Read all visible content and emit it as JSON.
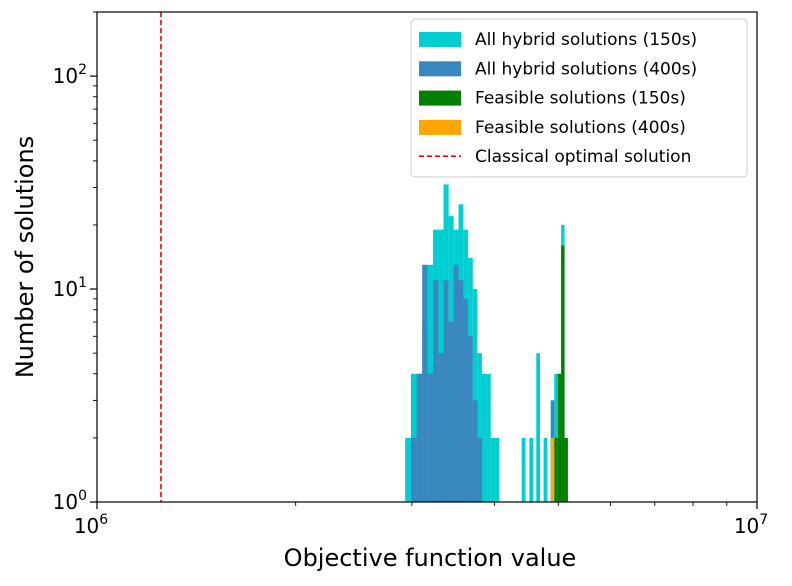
{
  "chart_data": {
    "type": "histogram",
    "title": "",
    "xlabel": "Objective function value",
    "ylabel": "Number of solutions",
    "xscale": "log",
    "yscale": "log",
    "xlim": [
      1000000,
      10000000
    ],
    "ylim": [
      1,
      200
    ],
    "x_tick_labels": [
      {
        "value": 1000000,
        "base": "10",
        "exp": "6"
      },
      {
        "value": 10000000,
        "base": "10",
        "exp": "7"
      }
    ],
    "y_tick_labels": [
      {
        "value": 1,
        "base": "10",
        "exp": "0"
      },
      {
        "value": 10,
        "base": "10",
        "exp": "1"
      },
      {
        "value": 100,
        "base": "10",
        "exp": "2"
      }
    ],
    "legend_position": "top-right",
    "series": [
      {
        "name": "All hybrid solutions (150s)",
        "color": "#00CED1",
        "bins": [
          [
            2930000,
            2990000,
            2
          ],
          [
            2990000,
            3050000,
            4
          ],
          [
            3050000,
            3110000,
            4
          ],
          [
            3110000,
            3170000,
            7
          ],
          [
            3170000,
            3230000,
            13
          ],
          [
            3230000,
            3290000,
            19
          ],
          [
            3290000,
            3350000,
            19
          ],
          [
            3350000,
            3410000,
            31
          ],
          [
            3410000,
            3470000,
            22
          ],
          [
            3470000,
            3530000,
            19
          ],
          [
            3530000,
            3590000,
            25
          ],
          [
            3590000,
            3650000,
            19
          ],
          [
            3650000,
            3710000,
            14
          ],
          [
            3710000,
            3770000,
            10
          ],
          [
            3770000,
            3830000,
            5
          ],
          [
            3830000,
            3890000,
            4
          ],
          [
            3890000,
            3950000,
            4
          ],
          [
            3950000,
            4010000,
            2
          ],
          [
            4010000,
            4070000,
            2
          ],
          [
            4400000,
            4460000,
            2
          ],
          [
            4520000,
            4580000,
            2
          ],
          [
            4630000,
            4690000,
            5
          ],
          [
            4750000,
            4810000,
            2
          ],
          [
            4870000,
            4930000,
            3
          ],
          [
            4930000,
            4990000,
            4
          ],
          [
            5050000,
            5110000,
            20
          ]
        ]
      },
      {
        "name": "All hybrid solutions (400s)",
        "color": "#3A86BE",
        "bins": [
          [
            2990000,
            3050000,
            2
          ],
          [
            3050000,
            3110000,
            4
          ],
          [
            3110000,
            3170000,
            13
          ],
          [
            3170000,
            3230000,
            4
          ],
          [
            3230000,
            3290000,
            11
          ],
          [
            3290000,
            3350000,
            5
          ],
          [
            3350000,
            3410000,
            11
          ],
          [
            3410000,
            3470000,
            7
          ],
          [
            3470000,
            3530000,
            13
          ],
          [
            3530000,
            3590000,
            11
          ],
          [
            3590000,
            3650000,
            9
          ],
          [
            3650000,
            3710000,
            6
          ],
          [
            3710000,
            3770000,
            3
          ],
          [
            3770000,
            3830000,
            2
          ],
          [
            4870000,
            4930000,
            3
          ]
        ]
      },
      {
        "name": "Feasible solutions (150s)",
        "color": "#008000",
        "bins": [
          [
            4930000,
            4990000,
            2
          ],
          [
            4990000,
            5050000,
            4
          ],
          [
            5050000,
            5110000,
            16
          ],
          [
            5110000,
            5170000,
            2
          ]
        ]
      },
      {
        "name": "Feasible solutions (400s)",
        "color": "#FFA500",
        "bins": [
          [
            4870000,
            4930000,
            2
          ]
        ]
      }
    ],
    "reference_line": {
      "name": "Classical optimal solution",
      "x": 1250000,
      "color": "#FF0000",
      "style": "dashed"
    }
  }
}
